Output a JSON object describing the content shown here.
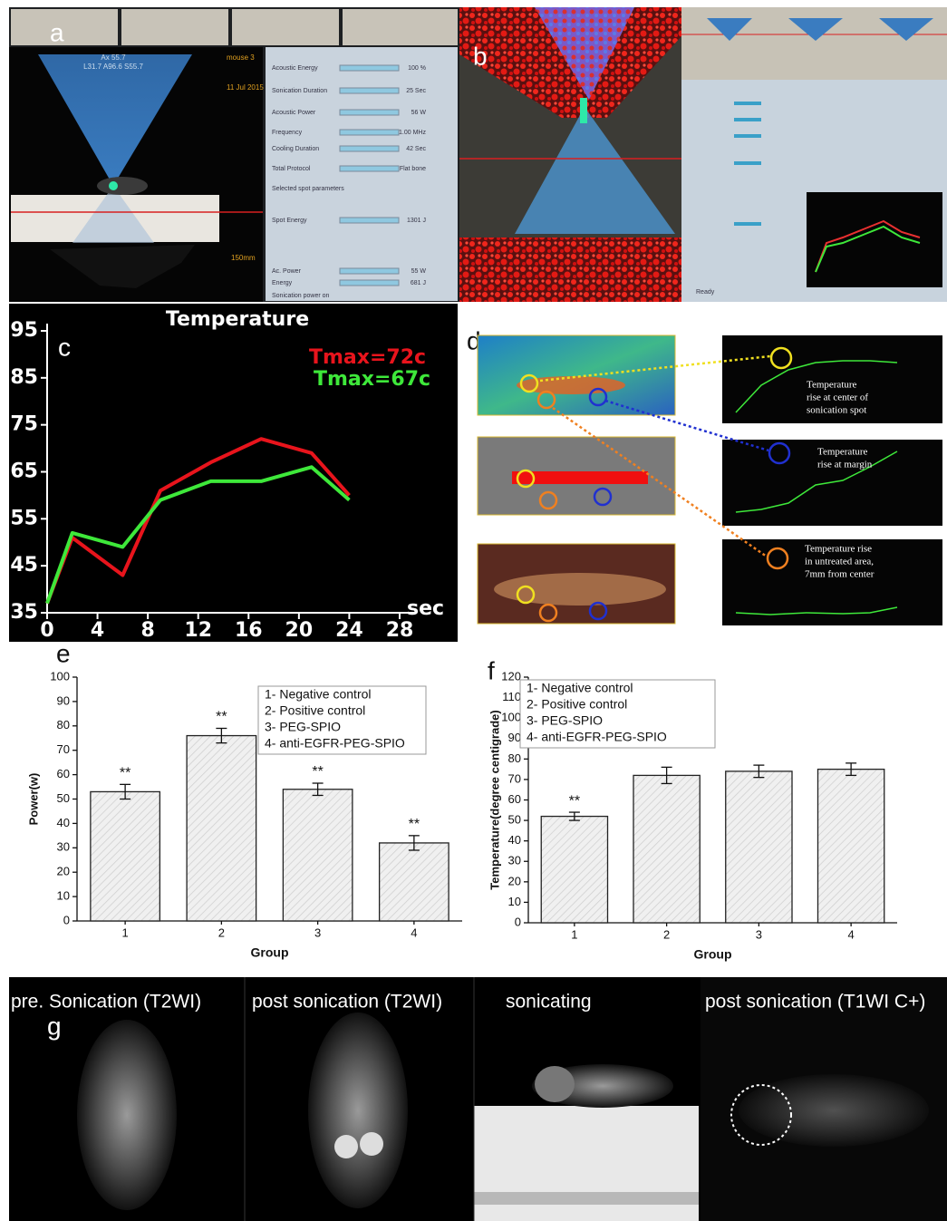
{
  "panel_a": {
    "label": "a",
    "overlay": [
      "Ax 55.7",
      "L31.7 A96.6 S55.7",
      "mouse 3",
      "11 Jul 2015",
      "150mm"
    ],
    "settings": [
      {
        "name": "Acoustic Energy",
        "value": "100 %"
      },
      {
        "name": "Sonication Duration",
        "value": "25 Sec"
      },
      {
        "name": "Acoustic Power",
        "value": "56 W"
      },
      {
        "name": "Frequency",
        "value": "1.00 MHz"
      },
      {
        "name": "Cooling Duration",
        "value": "42 Sec"
      },
      {
        "name": "Total Protocol",
        "value": "Flat bone"
      },
      {
        "name": "Selected spot parameters",
        "value": null
      },
      {
        "name": "Spot Energy",
        "value": "1301 J"
      },
      {
        "name": "Ac. Power",
        "value": "55 W"
      },
      {
        "name": "Energy",
        "value": "681 J"
      },
      {
        "name": "Sonication power on",
        "value": null
      }
    ]
  },
  "panel_b": {
    "label": "b",
    "status": "Ready"
  },
  "panel_d": {
    "label": "d",
    "notes": [
      [
        "Temperature",
        "rise at center of",
        "sonication spot"
      ],
      [
        "Temperature",
        "rise at margin"
      ],
      [
        "Temperature rise",
        "in untreated area,",
        "7mm from center"
      ]
    ]
  },
  "panel_g": {
    "label": "g",
    "titles": [
      "pre. Sonication  (T2WI)",
      "post sonication  (T2WI)",
      "sonicating",
      "post sonication (T1WI C+)"
    ]
  },
  "chart_data": [
    {
      "type": "line",
      "panel_label": "c",
      "title": "Temperature",
      "x_label": "sec",
      "x": [
        0,
        2,
        6,
        9,
        13,
        17,
        21,
        24
      ],
      "series": [
        {
          "name": "Tmax=72c",
          "color": "#e8141c",
          "values": [
            37,
            51,
            43,
            61,
            67,
            72,
            69,
            60
          ]
        },
        {
          "name": "Tmax=67c",
          "color": "#3ee83a",
          "values": [
            37,
            52,
            49,
            59,
            63,
            63,
            66,
            59
          ]
        }
      ],
      "xlim": [
        0,
        28
      ],
      "xticks": [
        0,
        4,
        8,
        12,
        16,
        20,
        24,
        28
      ],
      "ylim": [
        35,
        95
      ],
      "yticks": [
        35,
        45,
        55,
        65,
        75,
        85,
        95
      ]
    },
    {
      "type": "bar",
      "panel_label": "e",
      "x_label": "Group",
      "y_label": "Power(w)",
      "categories": [
        "1",
        "2",
        "3",
        "4"
      ],
      "values": [
        53,
        76,
        54,
        32
      ],
      "errors": [
        3,
        3,
        2.5,
        3
      ],
      "annotations": [
        "**",
        "**",
        "**",
        "**"
      ],
      "legend_items": [
        "1- Negative control",
        "2- Positive control",
        "3- PEG-SPIO",
        "4- anti-EGFR-PEG-SPIO"
      ],
      "ylim": [
        0,
        100
      ],
      "yticks": [
        0,
        10,
        20,
        30,
        40,
        50,
        60,
        70,
        80,
        90,
        100
      ]
    },
    {
      "type": "bar",
      "panel_label": "f",
      "x_label": "Group",
      "y_label": "Temperature(degree centigrade)",
      "categories": [
        "1",
        "2",
        "3",
        "4"
      ],
      "values": [
        52,
        72,
        74,
        75
      ],
      "errors": [
        2,
        4,
        3,
        3
      ],
      "annotations": [
        "**",
        null,
        null,
        null
      ],
      "legend_items": [
        "1- Negative control",
        "2- Positive control",
        "3- PEG-SPIO",
        "4- anti-EGFR-PEG-SPIO"
      ],
      "ylim": [
        0,
        120
      ],
      "yticks": [
        0,
        10,
        20,
        30,
        40,
        50,
        60,
        70,
        80,
        90,
        100,
        110,
        120
      ]
    }
  ]
}
